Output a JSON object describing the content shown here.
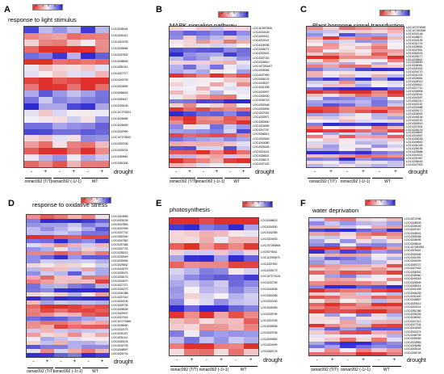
{
  "colors": {
    "low": "#e0302b",
    "mid": "#f6f2f6",
    "high": "#2f2bd0"
  },
  "legend_ticks": [
    "-2",
    "-1",
    "0",
    "1",
    "2"
  ],
  "treatment_signs": [
    "-",
    "+",
    "-",
    "+",
    "-",
    "+"
  ],
  "condition_label": "drought",
  "panels": [
    {
      "letter": "A",
      "title": "response to light stimulus",
      "genotypes": [
        "osnac092 (T/T)",
        "osnac092 (-1/-1)",
        "WT"
      ],
      "genes": [
        "LOC4336044",
        "LOC4341611",
        "LOC4324705",
        "LOC4339684",
        "LOC4337802",
        "LOC4348845",
        "LOC4351514",
        "LOC4327377",
        "LOC4343709",
        "LOC4324559",
        "LOC9266624",
        "LOC4350617",
        "LOC4325145",
        "LOC107276201",
        "LOC4328489",
        "LOC4328490",
        "LOC4332990",
        "LOC107276610",
        "LOC4332236",
        "LOC4330024",
        "LOC4350861",
        "LOC4351636"
      ]
    },
    {
      "letter": "B",
      "title": "MAPK signaling pathway",
      "genotypes": [
        "osnac092 (T/T)",
        "osnac092 (-1/-1)",
        "WT"
      ],
      "genes": [
        "LOC112937845",
        "LOC4333435",
        "LOC4340411",
        "LOC4333119",
        "LOC4329058",
        "LOC4338271",
        "LOC4332631",
        "LOC4337016",
        "LOC4326610",
        "LOC107281607",
        "LOC4339065",
        "LOC4337950",
        "LOC9268123",
        "LOC4339027",
        "LOC4341306",
        "LOC4329907",
        "LOC4340000",
        "LOC4338718",
        "LOC4352548",
        "LOC4330905",
        "LOC4337051",
        "LOC4332871",
        "LOC4352660",
        "LOC4329355",
        "LOC4347767",
        "LOC9266813",
        "LOC4332645",
        "LOC4344080",
        "LOC4325426",
        "LOC4324241",
        "LOC4336531",
        "LOC4338171",
        "LOC4337423"
      ]
    },
    {
      "letter": "C",
      "title": "Plant hormone signal transduction",
      "genotypes": [
        "osnac092 (T/T)",
        "osnac092 (-1/-1)",
        "WT"
      ],
      "genes": [
        "LOC107276345",
        "LOC107287895",
        "LOC4332148",
        "LOC4348671",
        "LOC4333155",
        "LOC4331276",
        "LOC4328562",
        "LOC4347651",
        "LOC4350025",
        "LOC4325177",
        "LOC4339847",
        "LOC4346590",
        "LOC4338061",
        "LOC4331592",
        "LOC4334770",
        "LOC4341202",
        "LOC4326654",
        "LOC4345013",
        "LOC4350612",
        "LOC4327711",
        "LOC4336908",
        "LOC4329041",
        "LOC4343397",
        "LOC4352210",
        "LOC4342115",
        "LOC4330488",
        "LOC4339172",
        "LOC4328093",
        "LOC4348106",
        "LOC4326742",
        "LOC4350519",
        "LOC4337604",
        "LOC4330176",
        "LOC4345891",
        "LOC4333467",
        "LOC4328235",
        "LOC4349600",
        "LOC4341028",
        "LOC4336195",
        "LOC4325688",
        "LOC4344321",
        "LOC4331967",
        "LOC4338416",
        "LOC4327003"
      ]
    },
    {
      "letter": "D",
      "title": "response to oxidative stress",
      "genotypes": [
        "osnac092 (T/T)",
        "osnac092 (-1/-1)",
        "WT"
      ],
      "genes": [
        "LOC4324556",
        "LOC4325126",
        "LOC4347863",
        "LOC4327699",
        "LOC4337732",
        "LOC4352160",
        "LOC4347962",
        "LOC4337486",
        "LOC4337731",
        "LOC4335213",
        "LOC4332549",
        "LOC4330954",
        "LOC4329832",
        "LOC4344279",
        "LOC4326974",
        "LOC4328176",
        "LOC4344570",
        "LOC4327371",
        "LOC4326273",
        "LOC4341388",
        "LOC4337419",
        "LOC4342106",
        "LOC4325735",
        "LOC4328535",
        "LOC4329907",
        "LOC4327916",
        "LOC107275489",
        "LOC4335050",
        "LOC4332175",
        "LOC4331437",
        "LOC4331114",
        "LOC4340104",
        "LOC4342703",
        "LOC4348597",
        "LOC4326716"
      ]
    },
    {
      "letter": "E",
      "title": "photosynthesis",
      "genotypes": [
        "osnac092 (T/T)",
        "osnac092 (-1/-1)",
        "WT"
      ],
      "genes": [
        "LOC4348623",
        "LOC4334300",
        "LOC4342395",
        "LOC4324933",
        "LOC107280506",
        "LOC9270631",
        "LOC112939572",
        "LOC4337500",
        "LOC4335179",
        "LOC107279124",
        "LOC4332745",
        "LOC4344538",
        "LOC4352085",
        "LOC4332430",
        "LOC4349269",
        "LOC4335799",
        "LOC4324705",
        "LOC4330838",
        "LOC4343706",
        "LOC4340583",
        "LOC4324099",
        "LOC4350176"
      ]
    },
    {
      "letter": "F",
      "title": "water deprivation",
      "genotypes": [
        "osnac092 (T/T)",
        "osnac092 (-1/-1)",
        "WT"
      ],
      "genes": [
        "LOC4372196",
        "LOC4328005",
        "LOC4326049",
        "LOC4341547",
        "LOC4345541",
        "LOC4350058",
        "LOC4328495",
        "LOC4338644",
        "LOC107280390",
        "LOC4329442",
        "LOC4330345",
        "LOC4341155",
        "LOC4349339",
        "LOC4350727",
        "LOC4327642",
        "LOC4338352",
        "LOC4336960",
        "LOC4349318",
        "LOC4326545",
        "LOC4336514",
        "LOC4341308",
        "LOC4346169",
        "LOC4331620",
        "LOC4328857",
        "LOC4330513",
        "LOC4333114",
        "LOC4351286",
        "LOC4335235",
        "LOC4326052",
        "LOC4337312",
        "LOC4327234",
        "LOC4324053",
        "LOC4331674",
        "LOC4348705",
        "LOC4339269",
        "LOC4332865",
        "LOC4326085",
        "LOC4345118",
        "LOC4336748"
      ]
    }
  ]
}
